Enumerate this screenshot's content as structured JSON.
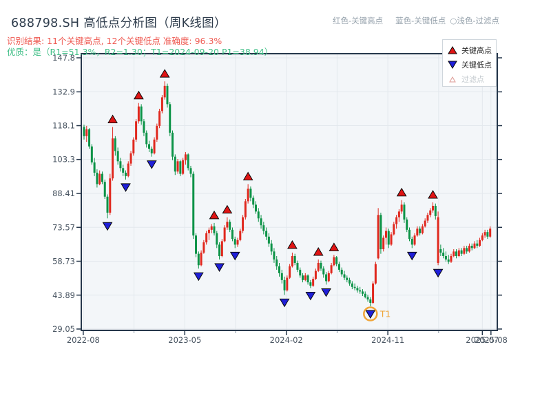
{
  "header": {
    "title": "688798.SH 高低点分析图（周K线图）",
    "result_line": "识别结果: 11个关键高点, 12个关键低点  准确度: 96.3%",
    "quality_line": "优质：是（R1=51.3%，R2=1.30；T1=2024-09-20 P1=38.94）",
    "hint_high": "红色-关键高点",
    "hint_low": "蓝色-关键低点",
    "hint_filter": "○浅色-过滤点"
  },
  "legend": {
    "items": [
      {
        "label": "关键高点",
        "marker": "red-up-triangle"
      },
      {
        "label": "关键低点",
        "marker": "blue-down-triangle"
      },
      {
        "label": "过滤点",
        "marker": "pale-up-triangle"
      }
    ]
  },
  "annotation": {
    "t1_label": "T1"
  },
  "colors": {
    "candle_up": "#e0281e",
    "candle_down": "#0c9347",
    "key_high_marker": "#e01414",
    "key_low_marker": "#1f1fd8",
    "t1_orange": "#f0a437",
    "plot_bg": "#f3f6f9",
    "gridline": "#e3e8ed",
    "spine": "#26374b",
    "tick_label": "#46525f"
  },
  "chart_data": {
    "type": "candlestick",
    "title": "688798.SH 高低点分析图（周K线图）",
    "timeframe": "weekly",
    "key_high_count": 11,
    "key_low_count": 12,
    "accuracy_pct": 96.3,
    "t1": {
      "week": 110,
      "price": 39,
      "date": "2024-09-20",
      "p1": 38.94
    },
    "y_ticks": [
      {
        "value": 147.8,
        "label": "147.8"
      },
      {
        "value": 132.9,
        "label": "132.9"
      },
      {
        "value": 118.1,
        "label": "118.1"
      },
      {
        "value": 103.3,
        "label": "103.3"
      },
      {
        "value": 88.41,
        "label": "88.41"
      },
      {
        "value": 73.57,
        "label": "73.57"
      },
      {
        "value": 58.73,
        "label": "58.73"
      },
      {
        "value": 43.89,
        "label": "43.89"
      },
      {
        "value": 29.05,
        "label": "29.05"
      }
    ],
    "x_ticks": [
      {
        "week": -0.3,
        "label": "2022-08"
      },
      {
        "week": 38.7,
        "label": "2023-05"
      },
      {
        "week": 77.7,
        "label": "2024-02"
      },
      {
        "week": 116.7,
        "label": "2024-11"
      },
      {
        "week": 153.0,
        "label": "2025-07"
      },
      {
        "week": 156.3,
        "label": "2025-08"
      }
    ],
    "x_minor_weeks": [
      19.2,
      58.2,
      97.2,
      136.2
    ],
    "ylim": [
      29.05,
      147.8
    ],
    "key_highs": [
      [
        11,
        117.5
      ],
      [
        21,
        128
      ],
      [
        31,
        137.5
      ],
      [
        50,
        75.5
      ],
      [
        55,
        78
      ],
      [
        63,
        92.5
      ],
      [
        80,
        62.5
      ],
      [
        90,
        59.5
      ],
      [
        96,
        61.5
      ],
      [
        122,
        85.5
      ],
      [
        134,
        84.5
      ]
    ],
    "key_lows": [
      [
        9,
        77.5
      ],
      [
        16,
        94.5
      ],
      [
        26,
        104.5
      ],
      [
        44,
        55.5
      ],
      [
        52,
        59.5
      ],
      [
        58,
        64.5
      ],
      [
        77,
        44
      ],
      [
        87,
        47
      ],
      [
        93,
        48.5
      ],
      [
        110,
        39
      ],
      [
        126,
        64.5
      ],
      [
        136,
        57
      ]
    ],
    "candles": [
      [
        117.5,
        118.5,
        112,
        113.5
      ],
      [
        113.5,
        118,
        111,
        116.5
      ],
      [
        116.5,
        117,
        108,
        109
      ],
      [
        109,
        110,
        101,
        102
      ],
      [
        102,
        104,
        96,
        97.5
      ],
      [
        97.5,
        99,
        91,
        92.5
      ],
      [
        92.5,
        98.5,
        92,
        97
      ],
      [
        97,
        98,
        92.5,
        93.5
      ],
      [
        93.5,
        94.5,
        86,
        87
      ],
      [
        87,
        88,
        77.5,
        80
      ],
      [
        80,
        97,
        79,
        95
      ],
      [
        95,
        117.5,
        94,
        112.5
      ],
      [
        112.5,
        113.5,
        105,
        107
      ],
      [
        107,
        108.5,
        101,
        102.5
      ],
      [
        102.5,
        104,
        98,
        99.5
      ],
      [
        99.5,
        101,
        96,
        97.5
      ],
      [
        97.5,
        98.5,
        94.5,
        96
      ],
      [
        96,
        102.5,
        95.5,
        101.5
      ],
      [
        101.5,
        107,
        100.5,
        106
      ],
      [
        106,
        113,
        105,
        112
      ],
      [
        112,
        121,
        111,
        120
      ],
      [
        120,
        128,
        119,
        126.5
      ],
      [
        126.5,
        127.5,
        118.5,
        120
      ],
      [
        120,
        121,
        113.5,
        115
      ],
      [
        115,
        116,
        108.5,
        110
      ],
      [
        110,
        111.5,
        106.5,
        108
      ],
      [
        108,
        109,
        104.5,
        106
      ],
      [
        106,
        113,
        105.5,
        112
      ],
      [
        112,
        119,
        111,
        118
      ],
      [
        118,
        125.5,
        117,
        124.5
      ],
      [
        124.5,
        131.5,
        123.5,
        130.5
      ],
      [
        130.5,
        137.5,
        129.5,
        135.5
      ],
      [
        135.5,
        136.5,
        126,
        127.5
      ],
      [
        127.5,
        128.5,
        113.5,
        115
      ],
      [
        115,
        116,
        103,
        104.5
      ],
      [
        104.5,
        105.5,
        96.5,
        98
      ],
      [
        98,
        103.5,
        97,
        102.5
      ],
      [
        102.5,
        103,
        96,
        97
      ],
      [
        97,
        104,
        96.5,
        103
      ],
      [
        103,
        106.5,
        101,
        105.5
      ],
      [
        105.5,
        106,
        98.5,
        99.5
      ],
      [
        99.5,
        100.5,
        95.5,
        97
      ],
      [
        97,
        98,
        68.5,
        70
      ],
      [
        70,
        71,
        60.5,
        62
      ],
      [
        62,
        63,
        55.5,
        57
      ],
      [
        57,
        63.5,
        56.5,
        62.5
      ],
      [
        62.5,
        68,
        62,
        67
      ],
      [
        67,
        72,
        66,
        71
      ],
      [
        71,
        73.5,
        68,
        72.5
      ],
      [
        72.5,
        75,
        71,
        74
      ],
      [
        74,
        75.5,
        70,
        71
      ],
      [
        71,
        72,
        64.5,
        66
      ],
      [
        66,
        67,
        59.5,
        61
      ],
      [
        61,
        68.5,
        60.5,
        67.5
      ],
      [
        67.5,
        74.5,
        67,
        73.5
      ],
      [
        73.5,
        78,
        72.5,
        76
      ],
      [
        76,
        77,
        71.5,
        72.5
      ],
      [
        72.5,
        73.5,
        67.5,
        68.5
      ],
      [
        68.5,
        69.5,
        64.5,
        66
      ],
      [
        66,
        69,
        65,
        68
      ],
      [
        68,
        73,
        67.5,
        72
      ],
      [
        72,
        79,
        71,
        78
      ],
      [
        78,
        86,
        77,
        85
      ],
      [
        85,
        92.5,
        84,
        90.5
      ],
      [
        90.5,
        91.5,
        85,
        86.5
      ],
      [
        86.5,
        87.5,
        82,
        83.5
      ],
      [
        83.5,
        85,
        79.5,
        80.5
      ],
      [
        80.5,
        82,
        76,
        77.5
      ],
      [
        77.5,
        79,
        73,
        74.5
      ],
      [
        74.5,
        76,
        70.5,
        72
      ],
      [
        72,
        73.5,
        68,
        69.5
      ],
      [
        69.5,
        71,
        65,
        66.5
      ],
      [
        66.5,
        68,
        61.5,
        63
      ],
      [
        63,
        64.5,
        58,
        59.5
      ],
      [
        59.5,
        61,
        55,
        56.5
      ],
      [
        56.5,
        58,
        52,
        53.5
      ],
      [
        53.5,
        55,
        49,
        50.5
      ],
      [
        50.5,
        52,
        44,
        46
      ],
      [
        46,
        52.5,
        45.5,
        51.5
      ],
      [
        51.5,
        57.5,
        51,
        56.5
      ],
      [
        56.5,
        62.5,
        56,
        61
      ],
      [
        61,
        62,
        57,
        58
      ],
      [
        58,
        59,
        54,
        55
      ],
      [
        55,
        56,
        51.5,
        52.5
      ],
      [
        52.5,
        53.5,
        49.5,
        50.5
      ],
      [
        50.5,
        53.5,
        50,
        52.5
      ],
      [
        52.5,
        53,
        48.5,
        49.5
      ],
      [
        49.5,
        50.5,
        47,
        48
      ],
      [
        48,
        52,
        47.5,
        51
      ],
      [
        51,
        55.5,
        50.5,
        54.5
      ],
      [
        54.5,
        59.5,
        54,
        58
      ],
      [
        58,
        59,
        54.5,
        55.5
      ],
      [
        55.5,
        56.5,
        51.5,
        53
      ],
      [
        53,
        54,
        48.5,
        50
      ],
      [
        50,
        54.5,
        49.5,
        53.5
      ],
      [
        53.5,
        58,
        53,
        57
      ],
      [
        57,
        61.5,
        56.5,
        60.5
      ],
      [
        60.5,
        61,
        56.5,
        57.5
      ],
      [
        57.5,
        58.5,
        54,
        55
      ],
      [
        55,
        56,
        52,
        53
      ],
      [
        53,
        54.5,
        50.5,
        51.5
      ],
      [
        51.5,
        52.5,
        49.5,
        50.5
      ],
      [
        50.5,
        51.5,
        48,
        49
      ],
      [
        49,
        50,
        46.5,
        47.5
      ],
      [
        47.5,
        49,
        46,
        47
      ],
      [
        47,
        48,
        45,
        46
      ],
      [
        46,
        47.5,
        44.5,
        45.5
      ],
      [
        45.5,
        46.5,
        43.5,
        44.5
      ],
      [
        44.5,
        45.5,
        42.5,
        43
      ],
      [
        43,
        44,
        41,
        42
      ],
      [
        42,
        43,
        39,
        40.5
      ],
      [
        40.5,
        50,
        40,
        49
      ],
      [
        49,
        58.5,
        48.5,
        57.5
      ],
      [
        60,
        82,
        59.5,
        79
      ],
      [
        79,
        80,
        62,
        64
      ],
      [
        64,
        70,
        63,
        69
      ],
      [
        69,
        73.5,
        66,
        72
      ],
      [
        72,
        73,
        64.5,
        66
      ],
      [
        66,
        71.5,
        65.5,
        70.5
      ],
      [
        70.5,
        76,
        70,
        75
      ],
      [
        75,
        79,
        73,
        78
      ],
      [
        78,
        81.5,
        76,
        80.5
      ],
      [
        80.5,
        85.5,
        79.5,
        83.5
      ],
      [
        83.5,
        84.5,
        75.5,
        77
      ],
      [
        77,
        78,
        71.5,
        72.5
      ],
      [
        72.5,
        73.5,
        67.5,
        68.5
      ],
      [
        68.5,
        69.5,
        64.5,
        66
      ],
      [
        66,
        71,
        65.5,
        70
      ],
      [
        70,
        74,
        69.5,
        73
      ],
      [
        73,
        74,
        70,
        71
      ],
      [
        71,
        75,
        70.5,
        74
      ],
      [
        74,
        77.5,
        73.5,
        76.5
      ],
      [
        76.5,
        80,
        75.5,
        79
      ],
      [
        79,
        82,
        78,
        81
      ],
      [
        81,
        84.5,
        80,
        83
      ],
      [
        83,
        84,
        77,
        78.5
      ],
      [
        58,
        80.5,
        57,
        78
      ],
      [
        64,
        66,
        61,
        62.5
      ],
      [
        62.5,
        64.5,
        60,
        61
      ],
      [
        61,
        63,
        58.5,
        59.5
      ],
      [
        59.5,
        61.5,
        57.5,
        58.5
      ],
      [
        58.5,
        62,
        58,
        61
      ],
      [
        61,
        64,
        60.5,
        63
      ],
      [
        63,
        64,
        60,
        61
      ],
      [
        61,
        64.5,
        60.5,
        63.5
      ],
      [
        63.5,
        64.5,
        61,
        62
      ],
      [
        62,
        65.5,
        61.5,
        64.5
      ],
      [
        64.5,
        65.5,
        62,
        63
      ],
      [
        63,
        66.5,
        62.5,
        65.5
      ],
      [
        65.5,
        66.5,
        63.5,
        64.5
      ],
      [
        64.5,
        67.5,
        64,
        66.5
      ],
      [
        66.5,
        68,
        64.5,
        65.5
      ],
      [
        65.5,
        69,
        65,
        68
      ],
      [
        68,
        71,
        67.5,
        70
      ],
      [
        70,
        72.5,
        69,
        71.5
      ],
      [
        71.5,
        72.5,
        68.5,
        69.5
      ],
      [
        69.5,
        74,
        69,
        73
      ]
    ]
  }
}
